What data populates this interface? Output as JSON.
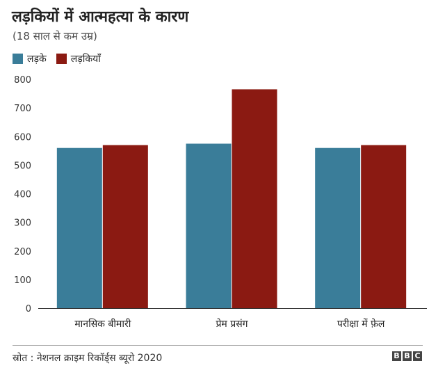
{
  "chart_data": {
    "type": "bar",
    "title": "लड़कियों में आत्महत्या के कारण",
    "subtitle": "(18 साल से कम उम्र)",
    "categories": [
      "मानसिक बीमारी",
      "प्रेम प्रसंग",
      "परीक्षा में फ़ेल"
    ],
    "series": [
      {
        "name": "लड़के",
        "color": "#3a7d99",
        "values": [
          560,
          575,
          560
        ]
      },
      {
        "name": "लड़कियाँ",
        "color": "#8b1a12",
        "values": [
          570,
          765,
          570
        ]
      }
    ],
    "ylim": [
      0,
      800
    ],
    "yticks": [
      0,
      100,
      200,
      300,
      400,
      500,
      600,
      700,
      800
    ],
    "xlabel": "",
    "ylabel": "",
    "grid": false,
    "legend_position": "top-left"
  },
  "footer": {
    "source": "स्रोत : नेशनल क्राइम रिकॉर्ड्स ब्यूरो 2020",
    "logo_letters": [
      "B",
      "B",
      "C"
    ]
  }
}
